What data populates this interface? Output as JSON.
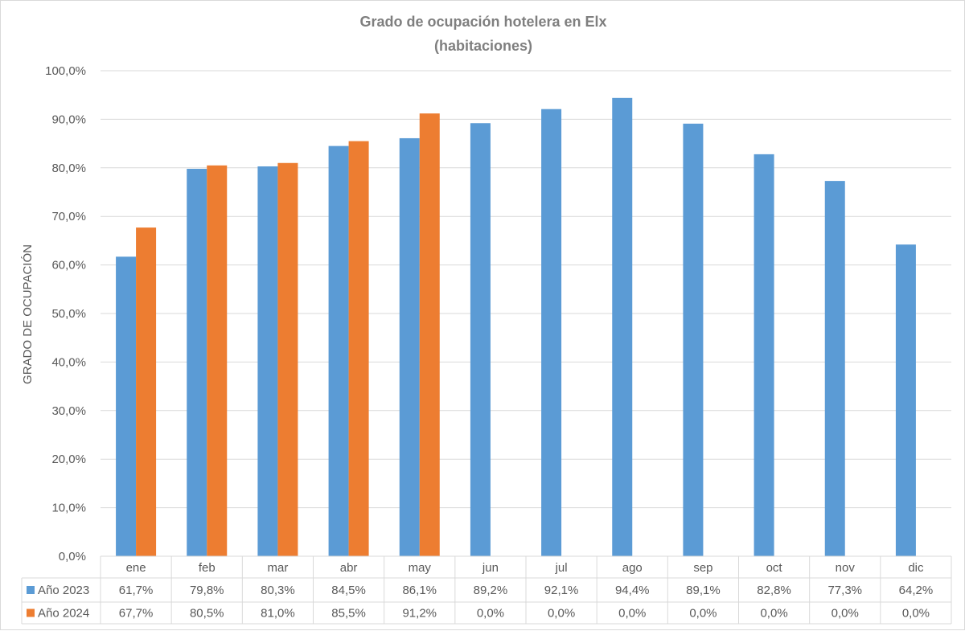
{
  "chart_data": {
    "type": "bar",
    "title": "Grado de ocupación hotelera en Elx",
    "subtitle": "(habitaciones)",
    "xlabel": "",
    "ylabel": "GRADO DE OCUPACIÓN",
    "ylim": [
      0,
      100
    ],
    "ytick_values": [
      0,
      10,
      20,
      30,
      40,
      50,
      60,
      70,
      80,
      90,
      100
    ],
    "ytick_labels": [
      "0,0%",
      "10,0%",
      "20,0%",
      "30,0%",
      "40,0%",
      "50,0%",
      "60,0%",
      "70,0%",
      "80,0%",
      "90,0%",
      "100,0%"
    ],
    "categories": [
      "ene",
      "feb",
      "mar",
      "abr",
      "may",
      "jun",
      "jul",
      "ago",
      "sep",
      "oct",
      "nov",
      "dic"
    ],
    "grid": true,
    "data_table": true,
    "series": [
      {
        "name": "Año 2023",
        "color": "#5b9bd5",
        "values": [
          61.7,
          79.8,
          80.3,
          84.5,
          86.1,
          89.2,
          92.1,
          94.4,
          89.1,
          82.8,
          77.3,
          64.2
        ],
        "labels": [
          "61,7%",
          "79,8%",
          "80,3%",
          "84,5%",
          "86,1%",
          "89,2%",
          "92,1%",
          "94,4%",
          "89,1%",
          "82,8%",
          "77,3%",
          "64,2%"
        ]
      },
      {
        "name": "Año 2024",
        "color": "#ed7d31",
        "values": [
          67.7,
          80.5,
          81.0,
          85.5,
          91.2,
          0,
          0,
          0,
          0,
          0,
          0,
          0
        ],
        "labels": [
          "67,7%",
          "80,5%",
          "81,0%",
          "85,5%",
          "91,2%",
          "0,0%",
          "0,0%",
          "0,0%",
          "0,0%",
          "0,0%",
          "0,0%",
          "0,0%"
        ]
      }
    ]
  }
}
